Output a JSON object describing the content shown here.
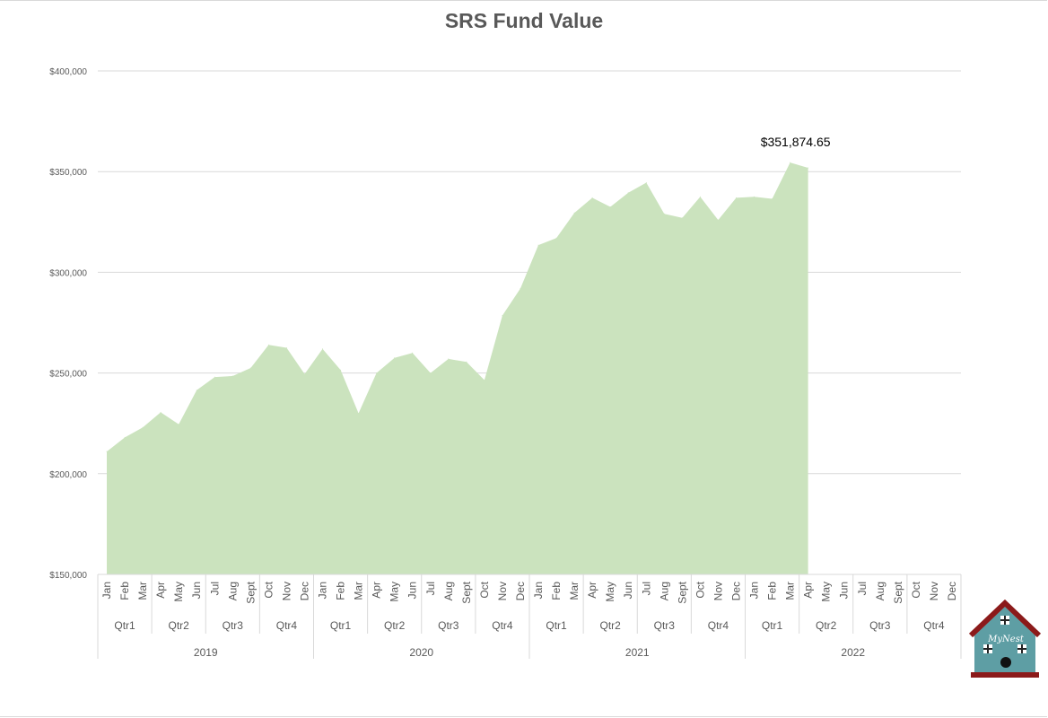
{
  "chart_data": {
    "type": "area",
    "title": "SRS Fund Value",
    "ylim": [
      150000,
      400000
    ],
    "y_ticks": [
      {
        "value": 150000,
        "label": "$150,000"
      },
      {
        "value": 200000,
        "label": "$200,000"
      },
      {
        "value": 250000,
        "label": "$250,000"
      },
      {
        "value": 300000,
        "label": "$300,000"
      },
      {
        "value": 350000,
        "label": "$350,000"
      },
      {
        "value": 400000,
        "label": "$400,000"
      }
    ],
    "grid": "horizontal",
    "fill_color": "#cbe3be",
    "years": [
      {
        "year": "2019",
        "quarters": [
          {
            "name": "Qtr1",
            "months": [
              "Jan",
              "Feb",
              "Mar"
            ]
          },
          {
            "name": "Qtr2",
            "months": [
              "Apr",
              "May",
              "Jun"
            ]
          },
          {
            "name": "Qtr3",
            "months": [
              "Jul",
              "Aug",
              "Sept"
            ]
          },
          {
            "name": "Qtr4",
            "months": [
              "Oct",
              "Nov",
              "Dec"
            ]
          }
        ]
      },
      {
        "year": "2020",
        "quarters": [
          {
            "name": "Qtr1",
            "months": [
              "Jan",
              "Feb",
              "Mar"
            ]
          },
          {
            "name": "Qtr2",
            "months": [
              "Apr",
              "May",
              "Jun"
            ]
          },
          {
            "name": "Qtr3",
            "months": [
              "Jul",
              "Aug",
              "Sept"
            ]
          },
          {
            "name": "Qtr4",
            "months": [
              "Oct",
              "Nov",
              "Dec"
            ]
          }
        ]
      },
      {
        "year": "2021",
        "quarters": [
          {
            "name": "Qtr1",
            "months": [
              "Jan",
              "Feb",
              "Mar"
            ]
          },
          {
            "name": "Qtr2",
            "months": [
              "Apr",
              "May",
              "Jun"
            ]
          },
          {
            "name": "Qtr3",
            "months": [
              "Jul",
              "Aug",
              "Sept"
            ]
          },
          {
            "name": "Qtr4",
            "months": [
              "Oct",
              "Nov",
              "Dec"
            ]
          }
        ]
      },
      {
        "year": "2022",
        "quarters": [
          {
            "name": "Qtr1",
            "months": [
              "Jan",
              "Feb",
              "Mar"
            ]
          },
          {
            "name": "Qtr2",
            "months": [
              "Apr",
              "May",
              "Jun"
            ]
          },
          {
            "name": "Qtr3",
            "months": [
              "Jul",
              "Aug",
              "Sept"
            ]
          },
          {
            "name": "Qtr4",
            "months": [
              "Oct",
              "Nov",
              "Dec"
            ]
          }
        ]
      }
    ],
    "values": [
      211000,
      218000,
      223000,
      230500,
      224500,
      241500,
      248000,
      248500,
      252500,
      264000,
      262500,
      249500,
      262000,
      251500,
      230000,
      250000,
      257500,
      260000,
      250000,
      257000,
      255500,
      246500,
      278500,
      292000,
      313500,
      317000,
      329500,
      337000,
      332500,
      339500,
      344500,
      329000,
      327000,
      337500,
      326000,
      337000,
      337500,
      336500,
      354500,
      351874.65,
      null,
      null,
      null,
      null,
      null,
      null,
      null,
      null
    ],
    "data_label": {
      "index": 39,
      "text": "$351,874.65"
    }
  },
  "logo": {
    "text": "MyNest",
    "wall_color": "#5e9ea4",
    "roof_color": "#8b1a1a"
  }
}
